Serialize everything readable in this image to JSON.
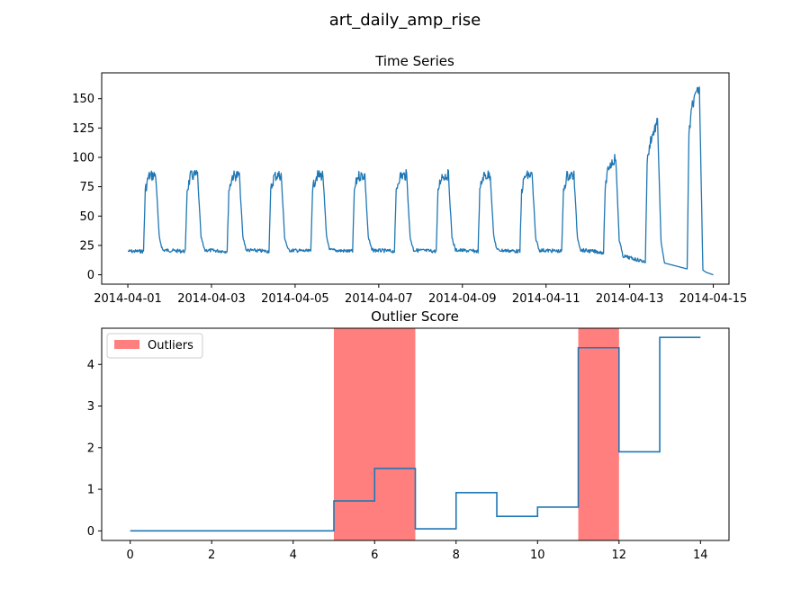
{
  "figure": {
    "suptitle": "art_daily_amp_rise"
  },
  "chart_data": [
    {
      "type": "line",
      "title": "Time Series",
      "xlabel": "",
      "ylabel": "",
      "x_type": "date",
      "xlim": [
        "2014-03-31T09:00",
        "2014-04-15T09:00"
      ],
      "ylim": [
        -8,
        172
      ],
      "x_ticks": [
        "2014-04-01",
        "2014-04-03",
        "2014-04-05",
        "2014-04-07",
        "2014-04-09",
        "2014-04-11",
        "2014-04-13",
        "2014-04-15"
      ],
      "y_ticks": [
        0,
        25,
        50,
        75,
        100,
        125,
        150
      ],
      "color": "#1f77b4",
      "series": [
        {
          "x": [
            "2014-04-01T00:00",
            "2014-04-01T09:00",
            "2014-04-01T10:00",
            "2014-04-01T12:00",
            "2014-04-01T16:00",
            "2014-04-01T18:00",
            "2014-04-01T20:00",
            "2014-04-02T09:00",
            "2014-04-02T10:00",
            "2014-04-02T12:00",
            "2014-04-02T16:00",
            "2014-04-02T18:00",
            "2014-04-02T20:00",
            "2014-04-03T09:00",
            "2014-04-03T10:00",
            "2014-04-03T12:00",
            "2014-04-03T16:00",
            "2014-04-03T18:00",
            "2014-04-03T20:00",
            "2014-04-04T09:00",
            "2014-04-04T10:00",
            "2014-04-04T12:00",
            "2014-04-04T16:00",
            "2014-04-04T18:00",
            "2014-04-04T20:00",
            "2014-04-05T09:00",
            "2014-04-05T10:00",
            "2014-04-05T12:00",
            "2014-04-05T16:00",
            "2014-04-05T18:00",
            "2014-04-05T20:00",
            "2014-04-06T09:00",
            "2014-04-06T10:00",
            "2014-04-06T12:00",
            "2014-04-06T16:00",
            "2014-04-06T18:00",
            "2014-04-06T20:00",
            "2014-04-07T09:00",
            "2014-04-07T10:00",
            "2014-04-07T12:00",
            "2014-04-07T16:00",
            "2014-04-07T18:00",
            "2014-04-07T20:00",
            "2014-04-08T09:00",
            "2014-04-08T10:00",
            "2014-04-08T12:00",
            "2014-04-08T16:00",
            "2014-04-08T18:00",
            "2014-04-08T20:00",
            "2014-04-09T09:00",
            "2014-04-09T10:00",
            "2014-04-09T12:00",
            "2014-04-09T16:00",
            "2014-04-09T18:00",
            "2014-04-09T20:00",
            "2014-04-10T09:00",
            "2014-04-10T10:00",
            "2014-04-10T12:00",
            "2014-04-10T16:00",
            "2014-04-10T18:00",
            "2014-04-10T20:00",
            "2014-04-11T09:00",
            "2014-04-11T10:00",
            "2014-04-11T12:00",
            "2014-04-11T16:00",
            "2014-04-11T18:00",
            "2014-04-11T20:00",
            "2014-04-12T09:00",
            "2014-04-12T10:00",
            "2014-04-12T12:00",
            "2014-04-12T16:00",
            "2014-04-12T18:00",
            "2014-04-12T20:00",
            "2014-04-13T09:00",
            "2014-04-13T10:00",
            "2014-04-13T12:00",
            "2014-04-13T16:00",
            "2014-04-13T18:00",
            "2014-04-13T20:00",
            "2014-04-14T09:00",
            "2014-04-14T10:00",
            "2014-04-14T12:00",
            "2014-04-14T16:00",
            "2014-04-14T18:00",
            "2014-04-14T20:00",
            "2014-04-14T23:59"
          ],
          "y": [
            20,
            20,
            72,
            84,
            85,
            32,
            21,
            20,
            72,
            84,
            85,
            32,
            21,
            20,
            72,
            84,
            85,
            32,
            21,
            20,
            72,
            84,
            85,
            32,
            21,
            20,
            72,
            84,
            85,
            32,
            21,
            20,
            72,
            84,
            85,
            32,
            21,
            20,
            72,
            84,
            85,
            32,
            21,
            20,
            72,
            84,
            85,
            32,
            21,
            20,
            72,
            84,
            85,
            32,
            21,
            20,
            72,
            84,
            85,
            32,
            21,
            20,
            72,
            84,
            85,
            32,
            21,
            19,
            75,
            92,
            100,
            30,
            16,
            11,
            95,
            115,
            130,
            28,
            10,
            5,
            120,
            145,
            160,
            4,
            2,
            0
          ]
        }
      ]
    },
    {
      "type": "line",
      "title": "Outlier Score",
      "xlabel": "",
      "ylabel": "",
      "xlim": [
        -0.7,
        14.7
      ],
      "ylim": [
        -0.23,
        4.87
      ],
      "x_ticks": [
        0,
        2,
        4,
        6,
        8,
        10,
        12,
        14
      ],
      "y_ticks": [
        0,
        1,
        2,
        3,
        4
      ],
      "color": "#1f77b4",
      "series": [
        {
          "x": [
            0,
            1,
            2,
            3,
            4,
            5,
            6,
            7,
            8,
            9,
            10,
            11,
            12,
            13,
            14
          ],
          "y": [
            0,
            0,
            0,
            0,
            0,
            0.72,
            1.5,
            0.05,
            0.92,
            0.35,
            0.57,
            4.4,
            1.9,
            4.65,
            4.65
          ],
          "step": "post"
        }
      ],
      "outlier_spans": [
        [
          5,
          7
        ],
        [
          11,
          12
        ]
      ],
      "outlier_color": "#ff7f7f",
      "legend": {
        "label": "Outliers",
        "placement": "top-left"
      }
    }
  ]
}
